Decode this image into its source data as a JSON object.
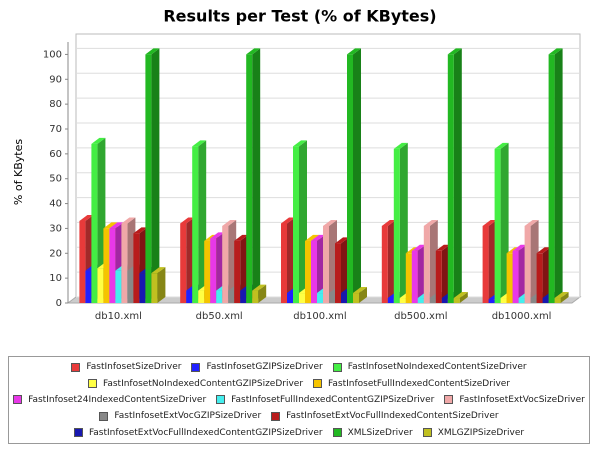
{
  "chart_data": {
    "type": "bar3d",
    "title": "Results per Test (% of KBytes)",
    "y_label": "% of KBytes",
    "categories": [
      "db10.xml",
      "db50.xml",
      "db100.xml",
      "db500.xml",
      "db1000.xml"
    ],
    "ylim": [
      0,
      105
    ],
    "yticks": [
      0,
      10,
      20,
      30,
      40,
      50,
      60,
      70,
      80,
      90,
      100
    ],
    "grid": true,
    "series": [
      {
        "name": "FastInfosetSizeDriver",
        "color": "#e83a3a",
        "values": [
          33,
          32,
          32,
          31,
          31
        ]
      },
      {
        "name": "FastInfosetGZIPSizeDriver",
        "color": "#2020ff",
        "values": [
          13,
          5,
          4,
          2,
          1.5
        ]
      },
      {
        "name": "FastInfosetNoIndexedContentSizeDriver",
        "color": "#44ee44",
        "values": [
          64,
          63,
          63,
          62,
          62
        ]
      },
      {
        "name": "FastInfosetNoIndexedContentGZIPSizeDriver",
        "color": "#ffff44",
        "values": [
          14,
          5,
          4,
          2,
          2
        ]
      },
      {
        "name": "FastInfosetFullIndexedContentSizeDriver",
        "color": "#f5c400",
        "values": [
          30,
          25,
          25,
          20,
          20
        ]
      },
      {
        "name": "FastInfoset24IndexedContentSizeDriver",
        "color": "#e838e8",
        "values": [
          30,
          26,
          25,
          21,
          21
        ]
      },
      {
        "name": "FastInfosetFullIndexedContentGZIPSizeDriver",
        "color": "#44eeee",
        "values": [
          13,
          5,
          4,
          2,
          2
        ]
      },
      {
        "name": "FastInfosetExtVocSizeDriver",
        "color": "#f0a8a8",
        "values": [
          32,
          31,
          31,
          31,
          31
        ]
      },
      {
        "name": "FastInfosetExtVocGZIPSizeDriver",
        "color": "#888888",
        "values": [
          13,
          5,
          4,
          2,
          2
        ]
      },
      {
        "name": "FastInfosetExtVocFullIndexedContentSizeDriver",
        "color": "#b81c1c",
        "values": [
          28,
          25,
          24,
          21,
          20
        ]
      },
      {
        "name": "FastInfosetExtVocFullIndexedContentGZIPSizeDriver",
        "color": "#1818b0",
        "values": [
          12,
          5,
          4,
          2,
          2
        ]
      },
      {
        "name": "XMLSizeDriver",
        "color": "#22b822",
        "values": [
          100,
          100,
          100,
          100,
          100
        ]
      },
      {
        "name": "XMLGZIPSizeDriver",
        "color": "#c0c020",
        "values": [
          12,
          5,
          4,
          2,
          2
        ]
      }
    ]
  }
}
